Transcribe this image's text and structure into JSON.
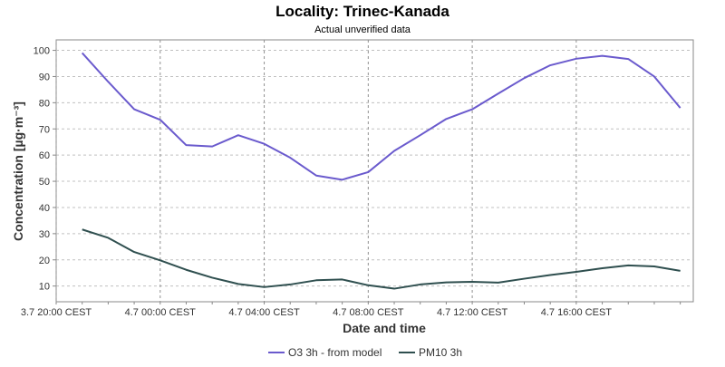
{
  "chart_data": {
    "type": "line",
    "title": "Locality: Trinec-Kanada",
    "subtitle": "Actual unverified data",
    "xlabel": "Date and time",
    "ylabel": "Concentration [µg·m⁻³]",
    "ylim": [
      4,
      104
    ],
    "yticks": [
      10,
      20,
      30,
      40,
      50,
      60,
      70,
      80,
      90,
      100
    ],
    "x_start_label": "3.7 21:00 CEST",
    "x_step_hours": 1,
    "xlim_hours": [
      -1,
      23.5
    ],
    "xticks": [
      {
        "label": "3.7 20:00 CEST",
        "hour": -1
      },
      {
        "label": "4.7 00:00 CEST",
        "hour": 3
      },
      {
        "label": "4.7 04:00 CEST",
        "hour": 7
      },
      {
        "label": "4.7 08:00 CEST",
        "hour": 11
      },
      {
        "label": "4.7 12:00 CEST",
        "hour": 15
      },
      {
        "label": "4.7 16:00 CEST",
        "hour": 19
      }
    ],
    "grid": true,
    "legend_position": "bottom",
    "series": [
      {
        "name": "O3 3h - from model",
        "color": "#6a5acd",
        "values": [
          99,
          88,
          77.5,
          73.5,
          63.8,
          63.3,
          67.6,
          64.3,
          59,
          52.2,
          50.6,
          53.5,
          61.6,
          67.6,
          73.8,
          77.5,
          83.5,
          89.4,
          94.3,
          96.8,
          97.9,
          96.7,
          90,
          78
        ]
      },
      {
        "name": "PM10 3h",
        "color": "#2f4f4f",
        "values": [
          31.6,
          28.4,
          23,
          19.8,
          16.2,
          13.2,
          10.8,
          9.6,
          10.6,
          12.2,
          12.5,
          10.3,
          9,
          10.6,
          11.4,
          11.6,
          11.3,
          12.8,
          14.2,
          15.4,
          16.8,
          17.9,
          17.5,
          15.8
        ]
      }
    ]
  }
}
